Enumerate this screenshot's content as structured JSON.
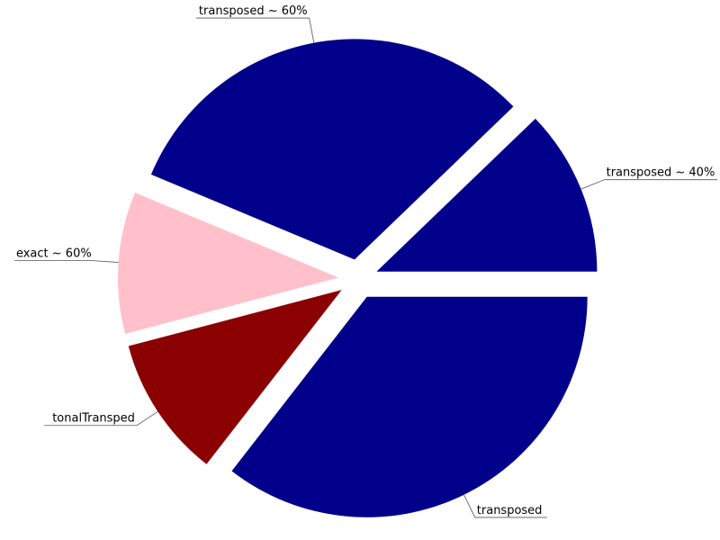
{
  "chart_data": {
    "type": "pie",
    "title": "",
    "legend": "none",
    "start_angle_deg": 0,
    "direction": "clockwise",
    "slices": [
      {
        "label": "transposed",
        "value": 35.5,
        "color": "#00008B",
        "exploded": true
      },
      {
        "label": "tonalTransped",
        "value": 10.4,
        "color": "#8B0000",
        "exploded": true
      },
      {
        "label": "exact ~ 60%",
        "value": 10.4,
        "color": "#FFC0CB",
        "exploded": true
      },
      {
        "label": "transposed ~ 60%",
        "value": 31.5,
        "color": "#00008B",
        "exploded": true
      },
      {
        "label": "transposed ~ 40%",
        "value": 12.2,
        "color": "#00008B",
        "exploded": true
      }
    ]
  }
}
